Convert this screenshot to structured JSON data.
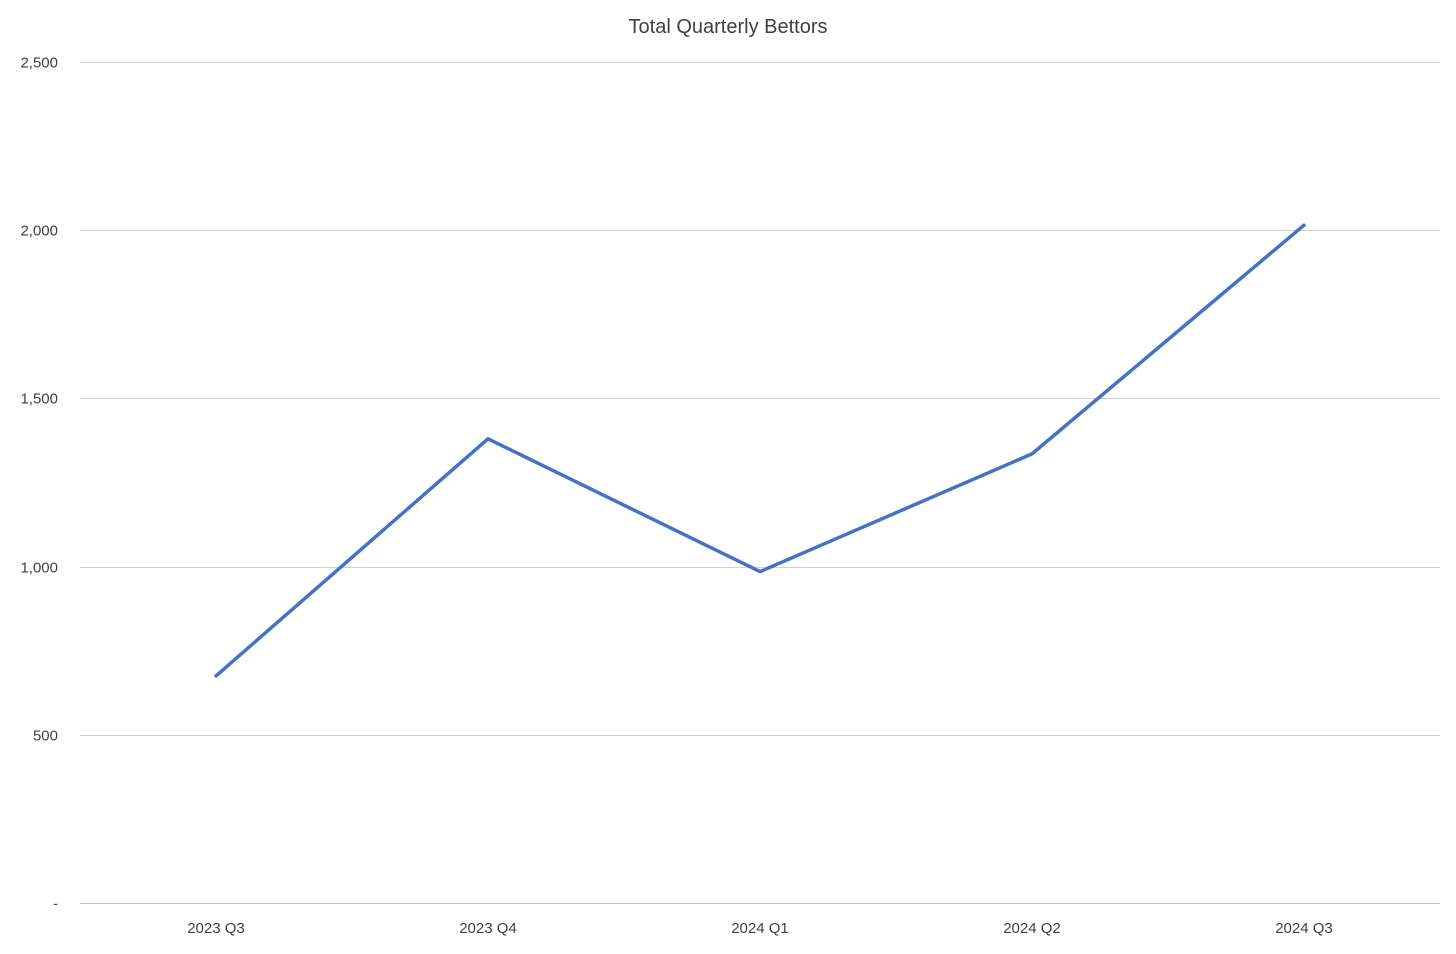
{
  "chart_data": {
    "type": "line",
    "title": "Total Quarterly Bettors",
    "xlabel": "",
    "ylabel": "",
    "categories": [
      "2023 Q3",
      "2023 Q4",
      "2024 Q1",
      "2024 Q2",
      "2024 Q3"
    ],
    "series": [
      {
        "values": [
          675,
          1380,
          985,
          1335,
          2015
        ],
        "color": "#4472c4"
      }
    ],
    "ylim": [
      0,
      2500
    ],
    "yticks": [
      0,
      500,
      1000,
      1500,
      2000,
      2500
    ],
    "ytick_labels": [
      "-",
      "500",
      "1,000",
      "1,500",
      "2,000",
      "2,500"
    ],
    "grid": true,
    "legend": "none"
  }
}
